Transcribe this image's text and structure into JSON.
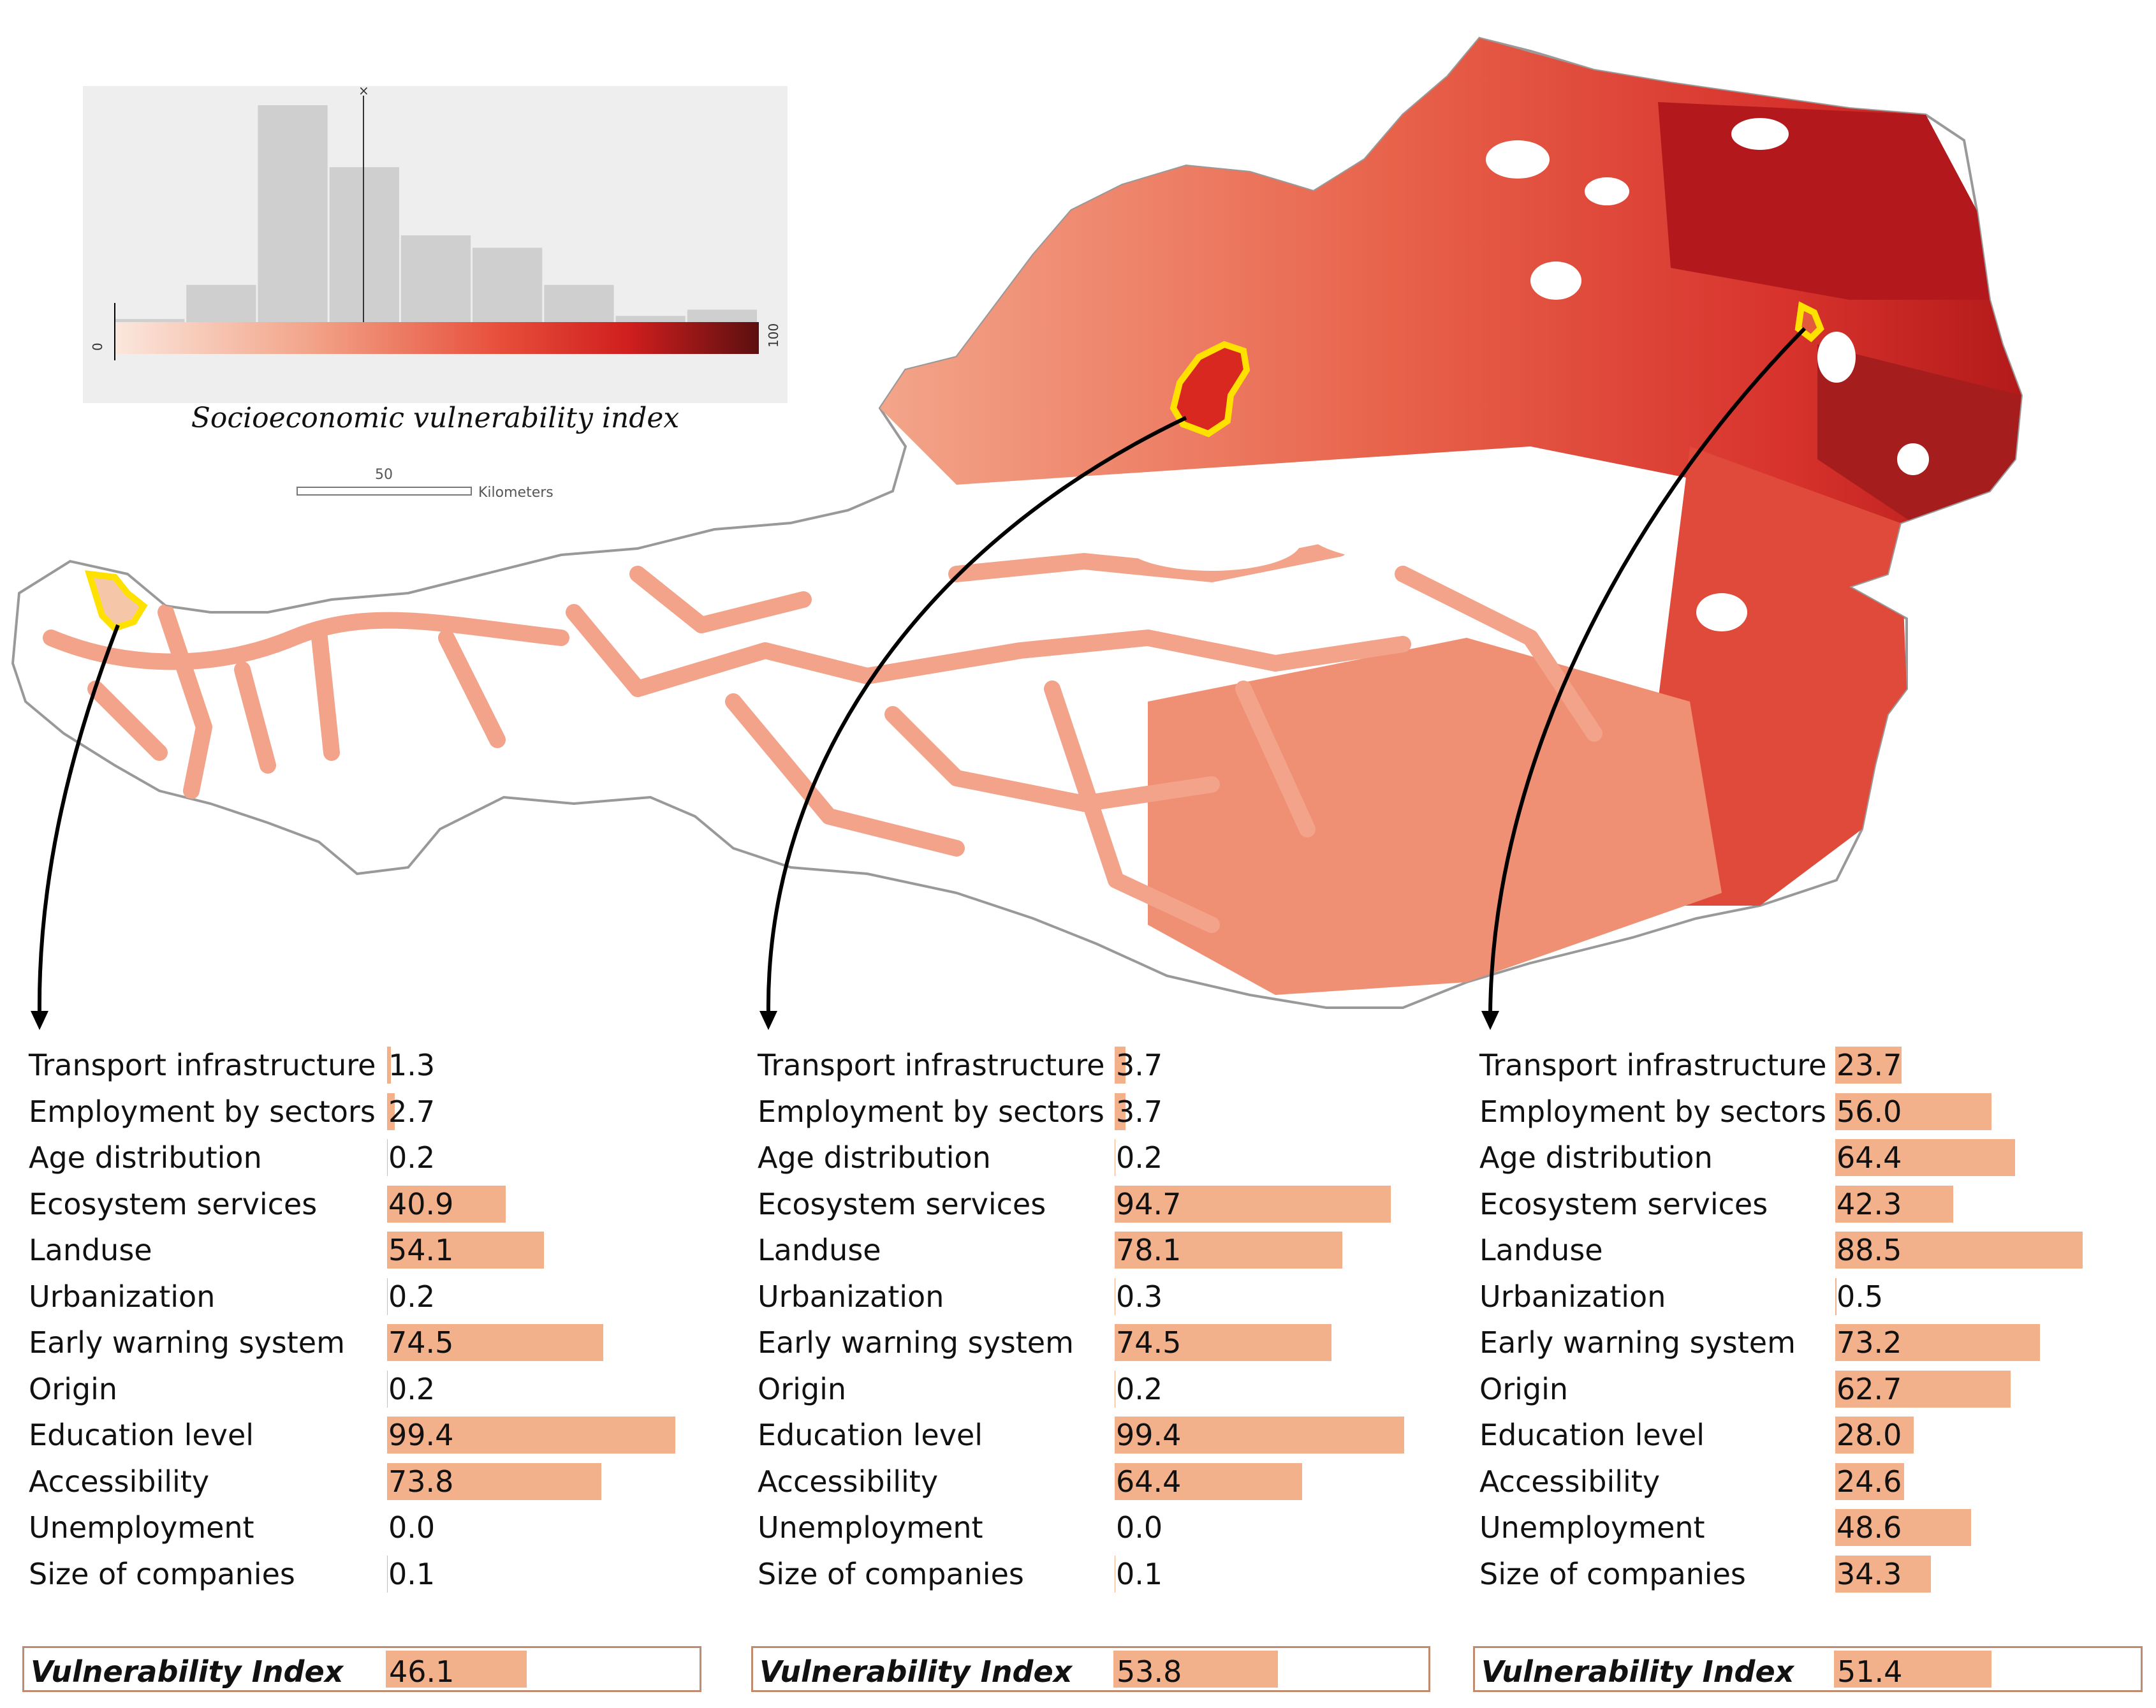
{
  "legend": {
    "title": "Socioeconomic vulnerability index",
    "range_min": "0",
    "range_max": "100",
    "marker_label": "×",
    "histogram_bins": [
      0.5,
      6,
      35,
      25,
      14,
      12,
      6,
      1,
      2
    ],
    "color_ramp": [
      "#fbe7dd",
      "#f2a58a",
      "#e74e3a",
      "#cf1e1e",
      "#5c0f0f"
    ]
  },
  "scale_bar": {
    "value": "50",
    "unit": "Kilometers"
  },
  "colors": {
    "bar": "#f2b18b",
    "highlight": "#ffe100",
    "border": "#999999"
  },
  "panels": [
    {
      "rows": [
        {
          "label": "Transport infrastructure",
          "value": "1.3"
        },
        {
          "label": "Employment by sectors",
          "value": "2.7"
        },
        {
          "label": "Age distribution",
          "value": "0.2"
        },
        {
          "label": "Ecosystem services",
          "value": "40.9"
        },
        {
          "label": "Landuse",
          "value": "54.1"
        },
        {
          "label": "Urbanization",
          "value": "0.2"
        },
        {
          "label": "Early warning system",
          "value": "74.5"
        },
        {
          "label": "Origin",
          "value": "0.2"
        },
        {
          "label": "Education level",
          "value": "99.4"
        },
        {
          "label": "Accessibility",
          "value": "73.8"
        },
        {
          "label": "Unemployment",
          "value": "0.0"
        },
        {
          "label": "Size of companies",
          "value": "0.1"
        }
      ],
      "index_label": "Vulnerability Index",
      "index_value": "46.1"
    },
    {
      "rows": [
        {
          "label": "Transport infrastructure",
          "value": "3.7"
        },
        {
          "label": "Employment by sectors",
          "value": "3.7"
        },
        {
          "label": "Age distribution",
          "value": "0.2"
        },
        {
          "label": "Ecosystem services",
          "value": "94.7"
        },
        {
          "label": "Landuse",
          "value": "78.1"
        },
        {
          "label": "Urbanization",
          "value": "0.3"
        },
        {
          "label": "Early warning system",
          "value": "74.5"
        },
        {
          "label": "Origin",
          "value": "0.2"
        },
        {
          "label": "Education level",
          "value": "99.4"
        },
        {
          "label": "Accessibility",
          "value": "64.4"
        },
        {
          "label": "Unemployment",
          "value": "0.0"
        },
        {
          "label": "Size of companies",
          "value": "0.1"
        }
      ],
      "index_label": "Vulnerability Index",
      "index_value": "53.8"
    },
    {
      "rows": [
        {
          "label": "Transport infrastructure",
          "value": "23.7"
        },
        {
          "label": "Employment by sectors",
          "value": "56.0"
        },
        {
          "label": "Age distribution",
          "value": "64.4"
        },
        {
          "label": "Ecosystem services",
          "value": "42.3"
        },
        {
          "label": "Landuse",
          "value": "88.5"
        },
        {
          "label": "Urbanization",
          "value": "0.5"
        },
        {
          "label": "Early warning system",
          "value": "73.2"
        },
        {
          "label": "Origin",
          "value": "62.7"
        },
        {
          "label": "Education level",
          "value": "28.0"
        },
        {
          "label": "Accessibility",
          "value": "24.6"
        },
        {
          "label": "Unemployment",
          "value": "48.6"
        },
        {
          "label": "Size of companies",
          "value": "34.3"
        }
      ],
      "index_label": "Vulnerability Index",
      "index_value": "51.4"
    }
  ]
}
